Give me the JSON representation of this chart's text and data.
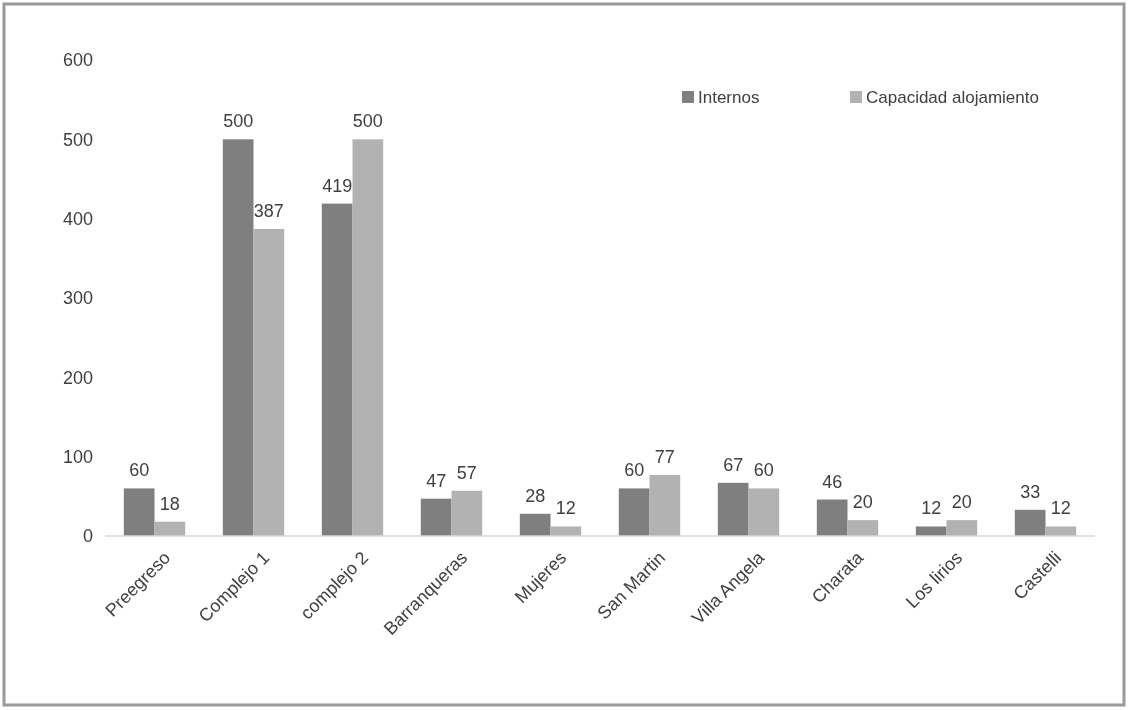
{
  "chart_data": {
    "type": "bar",
    "categories": [
      "Preegreso",
      "Complejo 1",
      "complejo 2",
      "Barranqueras",
      "Mujeres",
      "San Martin",
      "Villa Angela",
      "Charata",
      "Los lirios",
      "Castelli"
    ],
    "series": [
      {
        "name": "Internos",
        "color": "#7f7f7f",
        "values": [
          60,
          500,
          419,
          47,
          28,
          60,
          67,
          46,
          12,
          33
        ]
      },
      {
        "name": "Capacidad alojamiento",
        "color": "#b2b2b2",
        "values": [
          18,
          387,
          500,
          57,
          12,
          77,
          60,
          20,
          20,
          12
        ]
      }
    ],
    "ylim": [
      0,
      600
    ],
    "yticks": [
      0,
      100,
      200,
      300,
      400,
      500,
      600
    ],
    "data_labels": true,
    "legend": "top right",
    "grid": false
  }
}
